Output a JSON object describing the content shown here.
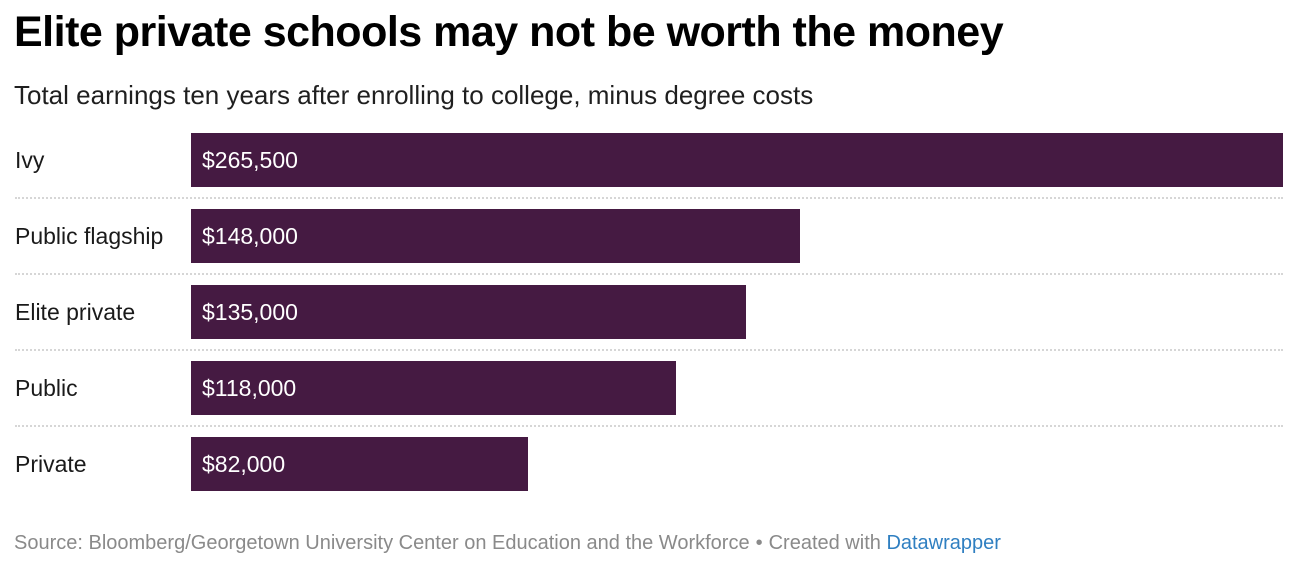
{
  "header": {
    "title": "Elite private schools may not be worth the money",
    "subtitle": "Total earnings ten years after enrolling to college, minus degree costs"
  },
  "footer": {
    "source": "Source: Bloomberg/Georgetown University Center on Education and the Workforce",
    "separator": "•",
    "created_with": "Created with",
    "link_text": "Datawrapper"
  },
  "colors": {
    "bar": "#451a42",
    "link": "#2f7fc1"
  },
  "chart_data": {
    "type": "bar",
    "orientation": "horizontal",
    "title": "Elite private schools may not be worth the money",
    "subtitle": "Total earnings ten years after enrolling to college, minus degree costs",
    "categories": [
      "Ivy",
      "Public flagship",
      "Elite private",
      "Public",
      "Private"
    ],
    "values": [
      265500,
      148000,
      135000,
      118000,
      82000
    ],
    "value_labels": [
      "$265,500",
      "$148,000",
      "$135,000",
      "$118,000",
      "$82,000"
    ],
    "xlim": [
      0,
      265500
    ],
    "grid": false
  }
}
